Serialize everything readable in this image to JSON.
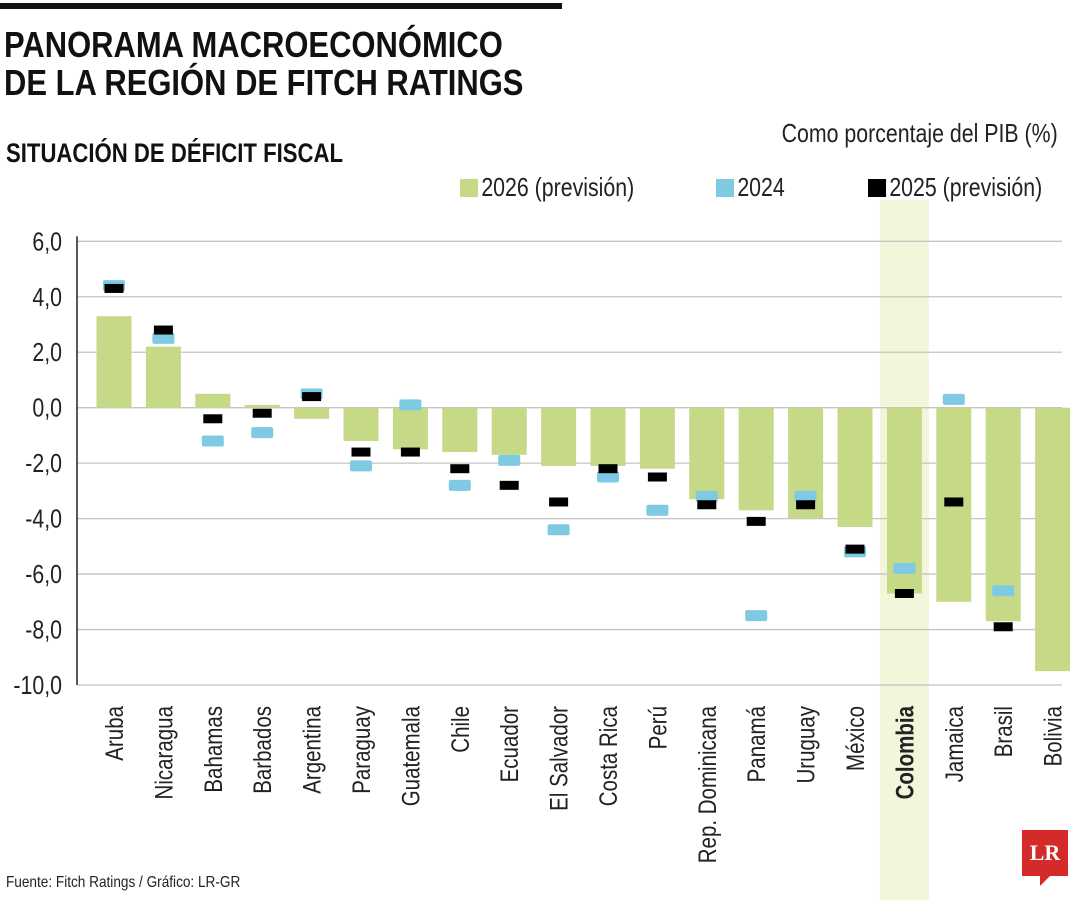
{
  "header": {
    "title_line1": "PANORAMA MACROECONÓMICO",
    "title_line2": "DE LA REGIÓN DE FITCH RATINGS",
    "subtitle": "SITUACIÓN DE DÉFICIT FISCAL",
    "unit": "Como porcentaje del PIB (%)"
  },
  "footer": {
    "source": "Fuente: Fitch Ratings / Gráfico: LR-GR",
    "logo": "LR"
  },
  "chart_data": {
    "type": "bar",
    "ylim": [
      -10,
      6
    ],
    "yticks": [
      "6,0",
      "4,0",
      "2,0",
      "0,0",
      "-2,0",
      "-4,0",
      "-6,0",
      "-8,0",
      "-10,0"
    ],
    "ytick_values": [
      6,
      4,
      2,
      0,
      -2,
      -4,
      -6,
      -8,
      -10
    ],
    "grid": true,
    "highlight": "Colombia",
    "categories": [
      "Aruba",
      "Nicaragua",
      "Bahamas",
      "Barbados",
      "Argentina",
      "Paraguay",
      "Guatemala",
      "Chile",
      "Ecuador",
      "El Salvador",
      "Costa Rica",
      "Perú",
      "Rep. Dominicana",
      "Panamá",
      "Uruguay",
      "México",
      "Colombia",
      "Jamaica",
      "Brasil",
      "Bolivia"
    ],
    "series": [
      {
        "name": "2026 (previsión)",
        "kind": "bar",
        "color": "#c5d987",
        "values": [
          3.3,
          2.2,
          0.5,
          0.1,
          -0.4,
          -1.2,
          -1.5,
          -1.6,
          -1.7,
          -2.1,
          -2.1,
          -2.2,
          -3.3,
          -3.7,
          -4.0,
          -4.3,
          -6.7,
          -7.0,
          -7.7,
          -9.5
        ]
      },
      {
        "name": "2024",
        "kind": "marker",
        "color": "#7ecae3",
        "values": [
          4.4,
          2.5,
          -1.2,
          -0.9,
          0.5,
          -2.1,
          0.1,
          -2.8,
          -1.9,
          -4.4,
          -2.5,
          -3.7,
          -3.2,
          -7.5,
          -3.2,
          -5.2,
          -5.8,
          0.3,
          -6.6,
          null
        ]
      },
      {
        "name": "2025 (previsión)",
        "kind": "marker",
        "color": "#000000",
        "values": [
          4.3,
          2.8,
          -0.4,
          -0.2,
          0.4,
          -1.6,
          -1.6,
          -2.2,
          -2.8,
          -3.4,
          -2.2,
          -2.5,
          -3.5,
          -4.1,
          -3.5,
          -5.1,
          -6.7,
          -3.4,
          -7.9,
          null
        ]
      }
    ]
  }
}
